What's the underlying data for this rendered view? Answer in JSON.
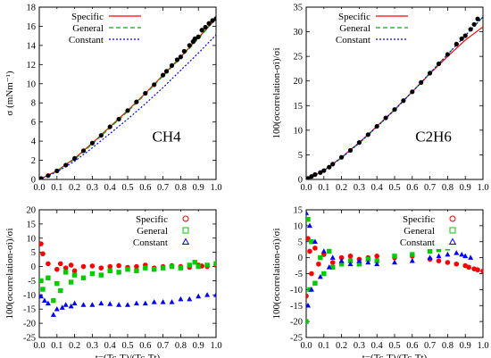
{
  "chart_data": [
    {
      "type": "scatter",
      "panel": "top-left",
      "ylabel": "σ (mNm⁻¹)",
      "xlabel": "",
      "annotation": "CH4",
      "xlim": [
        0.0,
        1.0
      ],
      "ylim": [
        0,
        18
      ],
      "xticks": [
        0.0,
        0.1,
        0.2,
        0.3,
        0.4,
        0.5,
        0.6,
        0.7,
        0.8,
        0.9,
        1.0
      ],
      "yticks": [
        0,
        2,
        4,
        6,
        8,
        10,
        12,
        14,
        16,
        18
      ],
      "legend": {
        "position": "top-left",
        "entries": [
          "Specific",
          "General",
          "Constant"
        ]
      },
      "series": [
        {
          "name": "Specific",
          "style": "line",
          "color": "#ff0000",
          "x": [
            0.0,
            0.1,
            0.2,
            0.3,
            0.4,
            0.5,
            0.6,
            0.7,
            0.8,
            0.9,
            1.0
          ],
          "y": [
            0.0,
            0.9,
            2.2,
            3.8,
            5.5,
            7.2,
            9.0,
            10.9,
            12.8,
            14.8,
            16.8
          ]
        },
        {
          "name": "General",
          "style": "line",
          "color": "#00b000",
          "x": [
            0.0,
            0.1,
            0.2,
            0.3,
            0.4,
            0.5,
            0.6,
            0.7,
            0.8,
            0.9,
            1.0
          ],
          "y": [
            0.0,
            0.85,
            2.1,
            3.7,
            5.4,
            7.1,
            8.9,
            10.8,
            12.7,
            14.7,
            16.8
          ]
        },
        {
          "name": "Constant",
          "style": "line",
          "color": "#0000ff",
          "x": [
            0.0,
            0.1,
            0.2,
            0.3,
            0.4,
            0.5,
            0.6,
            0.7,
            0.8,
            0.9,
            1.0
          ],
          "y": [
            0.0,
            0.8,
            1.9,
            3.3,
            4.8,
            6.3,
            7.9,
            9.6,
            11.4,
            13.2,
            15.1
          ]
        },
        {
          "name": "",
          "style": "points",
          "color": "#000000",
          "x": [
            0.01,
            0.05,
            0.1,
            0.15,
            0.2,
            0.25,
            0.3,
            0.35,
            0.4,
            0.45,
            0.5,
            0.55,
            0.6,
            0.65,
            0.7,
            0.72,
            0.75,
            0.78,
            0.8,
            0.82,
            0.85,
            0.87,
            0.88,
            0.9,
            0.92,
            0.94,
            0.96,
            0.98,
            1.0
          ],
          "y": [
            0.1,
            0.4,
            0.9,
            1.5,
            2.2,
            3.0,
            3.8,
            4.6,
            5.5,
            6.3,
            7.2,
            8.1,
            9.0,
            9.9,
            10.9,
            11.3,
            11.9,
            12.5,
            12.8,
            13.4,
            14.0,
            14.4,
            14.7,
            14.9,
            15.6,
            15.9,
            16.3,
            16.6,
            16.8
          ]
        }
      ]
    },
    {
      "type": "scatter",
      "panel": "top-right",
      "ylabel": "100(σcorrelation-σi)/σi",
      "xlabel": "",
      "annotation": "C2H6",
      "xlim": [
        0.0,
        1.0
      ],
      "ylim": [
        0,
        35
      ],
      "xticks": [
        0.0,
        0.1,
        0.2,
        0.3,
        0.4,
        0.5,
        0.6,
        0.7,
        0.8,
        0.9,
        1.0
      ],
      "yticks": [
        0,
        5,
        10,
        15,
        20,
        25,
        30,
        35
      ],
      "legend": {
        "position": "top-left",
        "entries": [
          "Specific",
          "General",
          "Constant"
        ]
      },
      "series": [
        {
          "name": "Specific",
          "style": "line",
          "color": "#ff0000",
          "x": [
            0.0,
            0.1,
            0.2,
            0.3,
            0.4,
            0.5,
            0.6,
            0.7,
            0.8,
            0.9,
            1.0
          ],
          "y": [
            0.0,
            1.8,
            4.5,
            7.5,
            10.8,
            14.2,
            17.8,
            21.5,
            25.0,
            28.3,
            31.0
          ]
        },
        {
          "name": "General",
          "style": "line",
          "color": "#00b000",
          "x": [
            0.0,
            0.1,
            0.2,
            0.3,
            0.4,
            0.5,
            0.6,
            0.7,
            0.8,
            0.9,
            1.0
          ],
          "y": [
            0.0,
            1.8,
            4.4,
            7.4,
            10.7,
            14.1,
            17.8,
            21.6,
            25.4,
            29.2,
            33.0
          ]
        },
        {
          "name": "Constant",
          "style": "line",
          "color": "#0000ff",
          "x": [
            0.0,
            0.1,
            0.2,
            0.3,
            0.4,
            0.5,
            0.6,
            0.7,
            0.8,
            0.9,
            1.0
          ],
          "y": [
            0.0,
            1.8,
            4.4,
            7.4,
            10.7,
            14.1,
            17.8,
            21.6,
            25.4,
            29.2,
            33.0
          ]
        },
        {
          "name": "",
          "style": "points",
          "color": "#000000",
          "x": [
            0.01,
            0.03,
            0.05,
            0.08,
            0.1,
            0.13,
            0.15,
            0.2,
            0.25,
            0.3,
            0.35,
            0.4,
            0.45,
            0.5,
            0.55,
            0.6,
            0.65,
            0.7,
            0.75,
            0.8,
            0.85,
            0.88,
            0.9,
            0.93,
            0.95,
            0.97
          ],
          "y": [
            0.2,
            0.6,
            1.0,
            1.4,
            1.8,
            2.5,
            3.1,
            4.5,
            5.9,
            7.5,
            9.1,
            10.8,
            12.5,
            14.2,
            16.0,
            17.8,
            19.7,
            21.6,
            23.5,
            25.4,
            27.5,
            28.6,
            29.2,
            30.5,
            31.5,
            32.6
          ]
        }
      ]
    },
    {
      "type": "scatter",
      "panel": "bottom-left",
      "ylabel": "100(σcorrelation-σi)/σi",
      "xlabel": "t=(Tc-T)/(Tc-Tt)",
      "xlim": [
        0.0,
        1.0
      ],
      "ylim": [
        -25,
        20
      ],
      "xticks": [
        0.0,
        0.1,
        0.2,
        0.3,
        0.4,
        0.5,
        0.6,
        0.7,
        0.8,
        0.9,
        1.0
      ],
      "yticks": [
        -25,
        -20,
        -15,
        -10,
        -5,
        0,
        5,
        10,
        15,
        20
      ],
      "legend": {
        "position": "top-right",
        "entries": [
          "Specific",
          "General",
          "Constant"
        ]
      },
      "series": [
        {
          "name": "Specific",
          "marker": "circle",
          "color": "#ff0000",
          "x": [
            0.01,
            0.02,
            0.05,
            0.1,
            0.12,
            0.15,
            0.18,
            0.2,
            0.25,
            0.3,
            0.35,
            0.4,
            0.45,
            0.5,
            0.55,
            0.6,
            0.65,
            0.7,
            0.75,
            0.8,
            0.85,
            0.9,
            0.92,
            0.95,
            1.0
          ],
          "y": [
            8.0,
            4.5,
            1.0,
            -1.0,
            1.0,
            -0.5,
            0.5,
            -1.5,
            0.0,
            0.2,
            -0.5,
            0.0,
            0.3,
            -0.3,
            0.0,
            0.5,
            -0.5,
            0.0,
            0.3,
            0.0,
            -0.3,
            0.5,
            0.2,
            0.0,
            0.5
          ]
        },
        {
          "name": "General",
          "marker": "square",
          "color": "#00cc00",
          "x": [
            0.01,
            0.02,
            0.05,
            0.08,
            0.1,
            0.12,
            0.15,
            0.18,
            0.2,
            0.25,
            0.3,
            0.35,
            0.4,
            0.45,
            0.5,
            0.55,
            0.6,
            0.65,
            0.7,
            0.75,
            0.8,
            0.85,
            0.88,
            0.9,
            0.95,
            1.0
          ],
          "y": [
            -5.0,
            -8.0,
            -4.0,
            -12.0,
            -6.0,
            -8.5,
            -2.0,
            -5.5,
            -3.0,
            -4.0,
            -2.5,
            -3.0,
            -1.5,
            -2.0,
            -1.0,
            -1.5,
            -0.5,
            -1.0,
            -0.5,
            0.0,
            -0.5,
            0.5,
            1.5,
            0.0,
            0.5,
            1.0
          ]
        },
        {
          "name": "Constant",
          "marker": "triangle",
          "color": "#0000ff",
          "x": [
            0.01,
            0.03,
            0.05,
            0.08,
            0.1,
            0.13,
            0.15,
            0.18,
            0.2,
            0.25,
            0.3,
            0.35,
            0.4,
            0.45,
            0.5,
            0.55,
            0.6,
            0.65,
            0.7,
            0.75,
            0.8,
            0.85,
            0.9,
            0.95,
            1.0
          ],
          "y": [
            -10.5,
            -12.0,
            -13.0,
            -17.0,
            -15.0,
            -14.5,
            -13.5,
            -14.0,
            -13.0,
            -13.5,
            -13.5,
            -13.0,
            -13.2,
            -13.5,
            -13.5,
            -13.0,
            -13.0,
            -12.5,
            -12.5,
            -12.5,
            -11.5,
            -11.5,
            -10.5,
            -10.0,
            -10.0
          ]
        }
      ]
    },
    {
      "type": "scatter",
      "panel": "bottom-right",
      "ylabel": "100(σcorrelation-σi)/σi",
      "xlabel": "t=(Tc-T)/(Tc-Tt)",
      "xlim": [
        0.0,
        1.0
      ],
      "ylim": [
        -25,
        15
      ],
      "xticks": [
        0.0,
        0.1,
        0.2,
        0.3,
        0.4,
        0.5,
        0.6,
        0.7,
        0.8,
        0.9,
        1.0
      ],
      "yticks": [
        -25,
        -20,
        -15,
        -10,
        -5,
        0,
        5,
        10,
        15
      ],
      "legend": {
        "position": "top-right",
        "entries": [
          "Specific",
          "General",
          "Constant"
        ]
      },
      "series": [
        {
          "name": "Specific",
          "marker": "circle",
          "color": "#ff0000",
          "x": [
            0.0,
            0.01,
            0.02,
            0.03,
            0.05,
            0.07,
            0.1,
            0.15,
            0.2,
            0.25,
            0.3,
            0.35,
            0.4,
            0.5,
            0.6,
            0.7,
            0.75,
            0.8,
            0.85,
            0.9,
            0.92,
            0.95,
            0.97,
            1.0
          ],
          "y": [
            -12.0,
            6.0,
            2.0,
            -5.0,
            3.0,
            -2.0,
            1.0,
            -1.5,
            0.0,
            0.5,
            -0.5,
            0.0,
            0.5,
            0.0,
            0.5,
            -0.5,
            -1.0,
            -1.5,
            -2.0,
            -2.5,
            -3.0,
            -3.5,
            -3.8,
            -4.2
          ]
        },
        {
          "name": "General",
          "marker": "square",
          "color": "#00cc00",
          "x": [
            0.0,
            0.01,
            0.02,
            0.03,
            0.05,
            0.08,
            0.1,
            0.13,
            0.15,
            0.2,
            0.25,
            0.3,
            0.35,
            0.4,
            0.5,
            0.6,
            0.7,
            0.75,
            0.8,
            0.85,
            0.88,
            0.9
          ],
          "y": [
            -20.0,
            12.0,
            -10.0,
            5.0,
            -8.0,
            0.0,
            -5.0,
            2.0,
            -3.0,
            -2.0,
            -1.0,
            -2.0,
            -0.5,
            -1.0,
            0.5,
            1.0,
            2.0,
            2.5,
            3.0,
            3.5,
            3.8,
            4.0
          ]
        },
        {
          "name": "Constant",
          "marker": "triangle",
          "color": "#0000ff",
          "x": [
            0.0,
            0.01,
            0.02,
            0.03,
            0.05,
            0.08,
            0.1,
            0.13,
            0.15,
            0.2,
            0.25,
            0.3,
            0.35,
            0.4,
            0.5,
            0.6,
            0.7,
            0.75,
            0.8,
            0.85,
            0.88,
            0.9,
            0.93
          ],
          "y": [
            14.0,
            -15.0,
            10.0,
            -10.0,
            5.0,
            -6.0,
            2.0,
            -3.0,
            0.0,
            -1.0,
            -2.0,
            -1.0,
            -1.5,
            -2.0,
            -1.5,
            -1.0,
            0.0,
            0.5,
            1.0,
            1.5,
            1.0,
            0.5,
            0.0
          ]
        }
      ]
    }
  ]
}
